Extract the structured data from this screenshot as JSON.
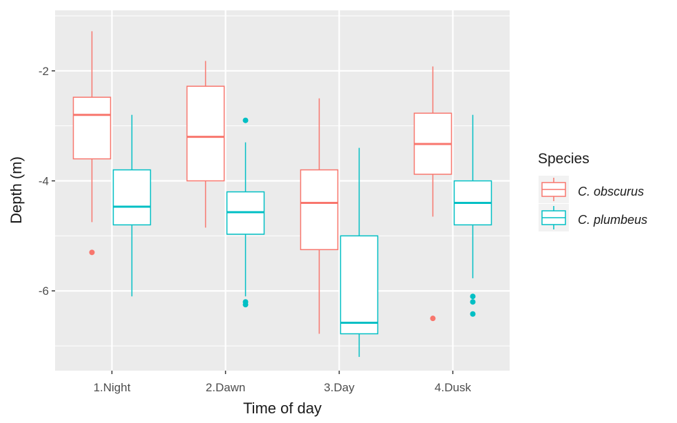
{
  "chart_data": {
    "type": "boxplot",
    "title": "",
    "xlabel": "Time of day",
    "ylabel": "Depth (m)",
    "categories": [
      "1.Night",
      "2.Dawn",
      "3.Day",
      "4.Dusk"
    ],
    "ylim": [
      -7.45,
      -0.9
    ],
    "yticks": [
      -2,
      -4,
      -6
    ],
    "ytick_labels": [
      "-2",
      "-4",
      "-6"
    ],
    "grid": true,
    "legend": {
      "title": "Species",
      "position": "right",
      "entries": [
        "C. obscurus",
        "C. plumbeus"
      ]
    },
    "series": [
      {
        "name": "C. obscurus",
        "color": "#f8766d",
        "boxes": [
          {
            "category": "1.Night",
            "whisker_low": -4.75,
            "q1": -3.6,
            "median": -2.8,
            "q3": -2.48,
            "whisker_high": -1.28,
            "outliers": [
              -5.3
            ]
          },
          {
            "category": "2.Dawn",
            "whisker_low": -4.85,
            "q1": -4.0,
            "median": -3.2,
            "q3": -2.28,
            "whisker_high": -1.82,
            "outliers": []
          },
          {
            "category": "3.Day",
            "whisker_low": -6.78,
            "q1": -5.25,
            "median": -4.4,
            "q3": -3.8,
            "whisker_high": -2.5,
            "outliers": []
          },
          {
            "category": "4.Dusk",
            "whisker_low": -4.65,
            "q1": -3.88,
            "median": -3.33,
            "q3": -2.77,
            "whisker_high": -1.92,
            "outliers": [
              -6.5
            ]
          }
        ]
      },
      {
        "name": "C. plumbeus",
        "color": "#00bfc4",
        "boxes": [
          {
            "category": "1.Night",
            "whisker_low": -6.1,
            "q1": -4.8,
            "median": -4.47,
            "q3": -3.8,
            "whisker_high": -2.8,
            "outliers": []
          },
          {
            "category": "2.Dawn",
            "whisker_low": -6.1,
            "q1": -4.97,
            "median": -4.57,
            "q3": -4.2,
            "whisker_high": -3.3,
            "outliers": [
              -2.9,
              -6.2,
              -6.25
            ]
          },
          {
            "category": "3.Day",
            "whisker_low": -7.2,
            "q1": -6.78,
            "median": -6.58,
            "q3": -5.0,
            "whisker_high": -3.4,
            "outliers": []
          },
          {
            "category": "4.Dusk",
            "whisker_low": -5.77,
            "q1": -4.8,
            "median": -4.4,
            "q3": -4.0,
            "whisker_high": -2.8,
            "outliers": [
              -6.1,
              -6.2,
              -6.42
            ]
          }
        ]
      }
    ]
  }
}
